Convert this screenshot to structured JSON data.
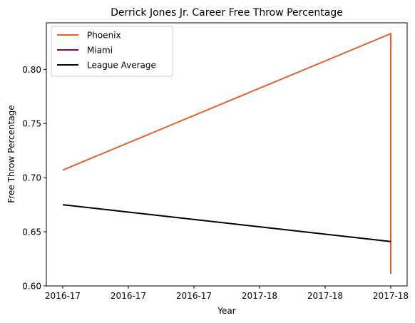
{
  "chart_data": {
    "type": "line",
    "title": "Derrick Jones Jr. Career Free Throw Percentage",
    "xlabel": "Year",
    "ylabel": "Free Throw Percentage",
    "x_tick_labels": [
      "2016-17",
      "2016-17",
      "2016-17",
      "2017-18",
      "2017-18",
      "2017-18"
    ],
    "xlim": [
      -0.05,
      1.05
    ],
    "ylim": [
      0.6,
      0.843
    ],
    "y_ticks": [
      0.6,
      0.65,
      0.7,
      0.75,
      0.8
    ],
    "y_tick_labels": [
      "0.60",
      "0.65",
      "0.70",
      "0.75",
      "0.80"
    ],
    "grid": false,
    "legend_position": "upper-left",
    "series": [
      {
        "name": "Phoenix",
        "color": "#e0622a",
        "points": [
          {
            "x": 0,
            "y": 0.707
          },
          {
            "x": 1,
            "y": 0.833
          },
          {
            "x": 1,
            "y": 0.611
          }
        ]
      },
      {
        "name": "Miami",
        "color": "#98002e",
        "points": [
          {
            "x": 1,
            "y": 0.611
          }
        ]
      },
      {
        "name": "League Average",
        "color": "#000000",
        "points": [
          {
            "x": 0,
            "y": 0.675
          },
          {
            "x": 1,
            "y": 0.641
          }
        ]
      }
    ]
  }
}
